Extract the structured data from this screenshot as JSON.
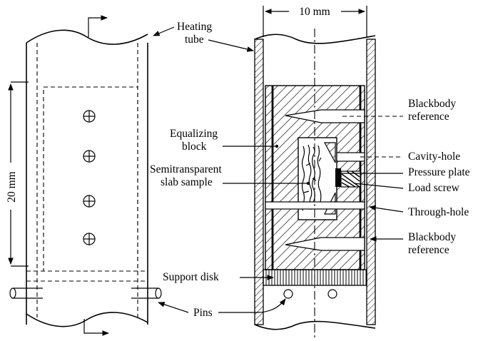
{
  "labels": {
    "heating_tube_1": "Heating",
    "heating_tube_2": "tube",
    "dim_width": "10 mm",
    "dim_height": "20 mm",
    "blackbody_top_1": "Blackbody",
    "blackbody_top_2": "reference",
    "equalizing_1": "Equalizing",
    "equalizing_2": "block",
    "semitransparent_1": "Semitransparent",
    "semitransparent_2": "slab sample",
    "cavity_hole": "Cavity-hole",
    "pressure_plate": "Pressure plate",
    "load_screw": "Load screw",
    "through_hole": "Through-hole",
    "blackbody_bottom_1": "Blackbody",
    "blackbody_bottom_2": "reference",
    "support_disk": "Support disk",
    "pins": "Pins"
  }
}
